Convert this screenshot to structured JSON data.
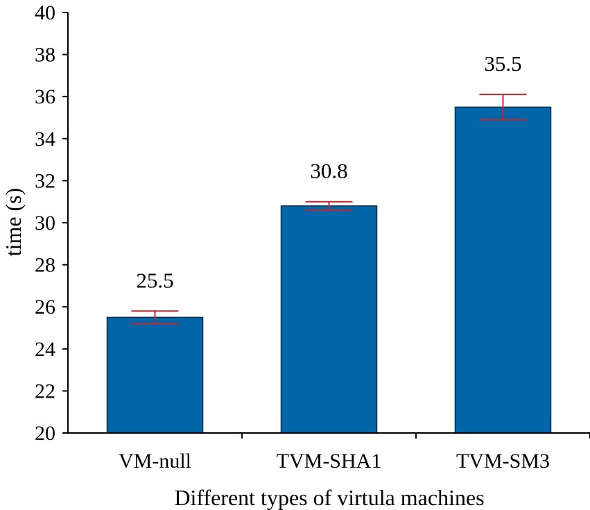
{
  "chart_data": {
    "type": "bar",
    "title": "",
    "xlabel": "Different types of virtula machines",
    "ylabel": "time (s)",
    "categories": [
      "VM-null",
      "TVM-SHA1",
      "TVM-SM3"
    ],
    "values": [
      25.5,
      30.8,
      35.5
    ],
    "data_labels": [
      "25.5",
      "30.8",
      "35.5"
    ],
    "error_bars": [
      {
        "low": 25.2,
        "high": 25.8
      },
      {
        "low": 30.6,
        "high": 31.0
      },
      {
        "low": 34.9,
        "high": 36.1
      }
    ],
    "ylim": [
      20,
      40
    ],
    "yticks": [
      20,
      22,
      24,
      26,
      28,
      30,
      32,
      34,
      36,
      38,
      40
    ],
    "ytick_labels": [
      "20",
      "22",
      "24",
      "26",
      "28",
      "30",
      "32",
      "34",
      "36",
      "38",
      "40"
    ],
    "grid": false,
    "legend": "none"
  },
  "colors": {
    "bar_fill": "#0066a8",
    "bar_stroke": "#0b2a45",
    "error_bar": "#c0282d",
    "axis": "#000000"
  }
}
